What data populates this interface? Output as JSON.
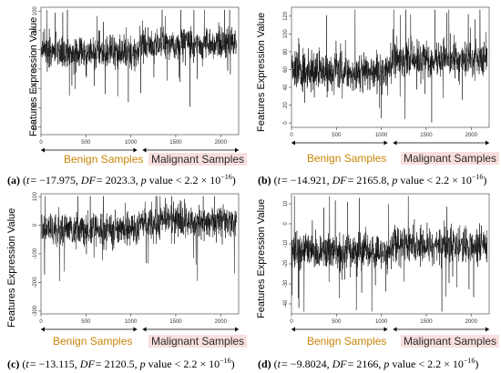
{
  "chart_data": [
    {
      "type": "line",
      "panel_label": "(a)",
      "ylabel": "Features Expression Value",
      "x_ticks": [
        0,
        500,
        1000,
        1500,
        2000
      ],
      "xlim": [
        0,
        2200
      ],
      "y_ticks": [
        100,
        50,
        0,
        -50,
        -100,
        -150,
        -200
      ],
      "ylim": [
        -220,
        110
      ],
      "split_index": 1090,
      "benign_mean": -5,
      "benign_spread": 28,
      "malignant_mean": 15,
      "malignant_spread": 28,
      "groups": {
        "benign": "Benign Samples",
        "malignant": "Malignant Samples"
      },
      "caption": {
        "t_text": "t",
        "t_val": "= −17.975, ",
        "df_text": "DF",
        "df_val": "= 2023.3, ",
        "p_text": "p",
        "p_val": " value <  2.2 × 10",
        "p_exp": "−16",
        "close": ")"
      }
    },
    {
      "type": "line",
      "panel_label": "(b)",
      "ylabel": "Features Expression Value",
      "x_ticks": [
        0,
        500,
        1000,
        1500,
        2000
      ],
      "xlim": [
        0,
        2200
      ],
      "y_ticks": [
        120,
        100,
        80,
        60,
        40,
        20,
        0
      ],
      "ylim": [
        -5,
        130
      ],
      "split_index": 1090,
      "benign_mean": 58,
      "benign_spread": 14,
      "malignant_mean": 70,
      "malignant_spread": 14,
      "groups": {
        "benign": "Benign Samples",
        "malignant": "Malignant Samples"
      },
      "caption": {
        "t_text": "t",
        "t_val": "= −14.921, ",
        "df_text": "DF",
        "df_val": "= 2165.8, ",
        "p_text": "p",
        "p_val": " value <  2.2 × 10",
        "p_exp": "−16",
        "close": ")"
      }
    },
    {
      "type": "line",
      "panel_label": "(c)",
      "ylabel": "Features Expression Value",
      "x_ticks": [
        0,
        500,
        1000,
        1500,
        2000
      ],
      "xlim": [
        0,
        2200
      ],
      "y_ticks": [
        100,
        0,
        -100,
        -200,
        -300
      ],
      "ylim": [
        -310,
        110
      ],
      "split_index": 1090,
      "benign_mean": -15,
      "benign_spread": 38,
      "malignant_mean": 10,
      "malignant_spread": 38,
      "groups": {
        "benign": "Benign Samples",
        "malignant": "Malignant Samples"
      },
      "caption": {
        "t_text": "t",
        "t_val": "= −13.115, ",
        "df_text": "DF",
        "df_val": "= 2120.5, ",
        "p_text": "p",
        "p_val": " value <  2.2 × 10",
        "p_exp": "−16",
        "close": ")"
      }
    },
    {
      "type": "line",
      "panel_label": "(d)",
      "ylabel": "Features Expression Value",
      "x_ticks": [
        0,
        500,
        1000,
        1500,
        2000
      ],
      "xlim": [
        0,
        2200
      ],
      "y_ticks": [
        10,
        0,
        -10,
        -20,
        -30,
        -40
      ],
      "ylim": [
        -45,
        15
      ],
      "split_index": 1090,
      "benign_mean": -14,
      "benign_spread": 6,
      "malignant_mean": -11,
      "malignant_spread": 6,
      "groups": {
        "benign": "Benign Samples",
        "malignant": "Malignant Samples"
      },
      "caption": {
        "t_text": "t",
        "t_val": "= −9.8024, ",
        "df_text": "DF",
        "df_val": "= 2166, ",
        "p_text": "p",
        "p_val": " value <  2.2 × 10",
        "p_exp": "−16",
        "close": ")"
      }
    }
  ]
}
